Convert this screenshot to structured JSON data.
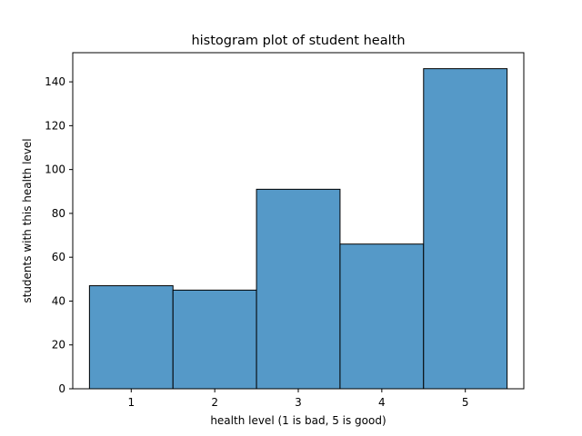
{
  "chart_data": {
    "type": "bar",
    "title": "histogram plot of student health",
    "xlabel": "health level (1 is bad, 5 is good)",
    "ylabel": "students with this health level",
    "categories": [
      "1",
      "2",
      "3",
      "4",
      "5"
    ],
    "bins": [
      [
        0.5,
        1.5
      ],
      [
        1.5,
        2.5
      ],
      [
        2.5,
        3.5
      ],
      [
        3.5,
        4.5
      ],
      [
        4.5,
        5.5
      ]
    ],
    "values": [
      47,
      45,
      91,
      66,
      146
    ],
    "xlim": [
      0.3,
      5.7
    ],
    "ylim": [
      0,
      153.3
    ],
    "xticks": [
      1,
      2,
      3,
      4,
      5
    ],
    "yticks": [
      0,
      20,
      40,
      60,
      80,
      100,
      120,
      140
    ],
    "grid": false,
    "legend": "none",
    "colors": {
      "bar_fill": "#5599c8",
      "bar_edge": "#000000",
      "axis": "#000000",
      "background": "#ffffff"
    }
  }
}
